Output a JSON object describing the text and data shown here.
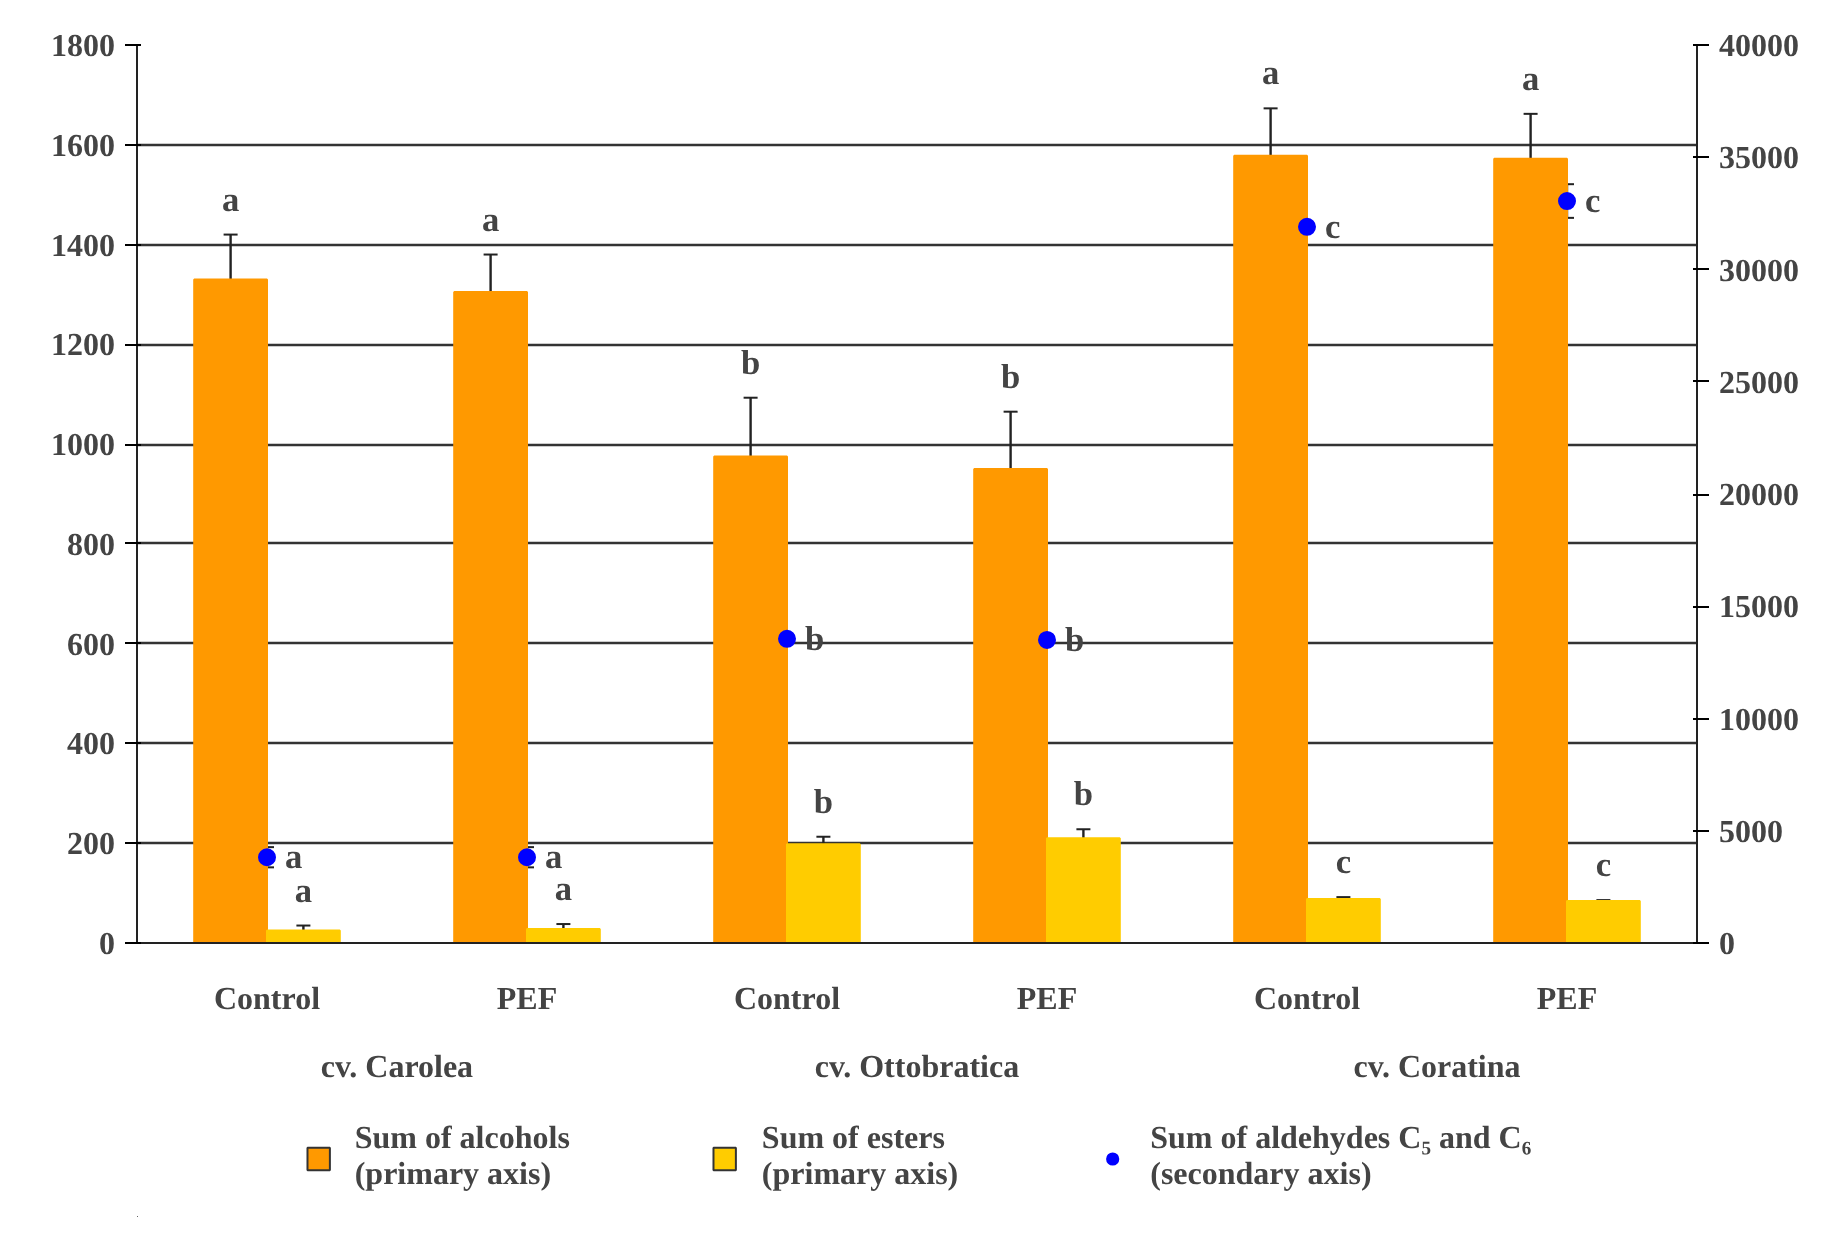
{
  "chart_data": {
    "type": "bar",
    "categories": [
      "Control",
      "PEF",
      "Control",
      "PEF",
      "Control",
      "PEF"
    ],
    "annotations": [
      "cv. Carolea",
      "cv. Ottobratica",
      "cv. Coratina"
    ],
    "series": [
      {
        "name": "Sum of alcohols\n(primary axis)",
        "color": "#ff9900",
        "values": [
          1330,
          1305,
          975,
          950,
          1578,
          1572
        ],
        "errors": [
          90,
          75,
          118,
          115,
          95,
          90
        ],
        "value_labels": [
          "a",
          "a",
          "b",
          "b",
          "a",
          "a"
        ]
      },
      {
        "name": "Sum of esters\n(primary axis)",
        "color": "#ffcc00",
        "values": [
          25,
          28,
          198,
          210,
          88,
          84
        ],
        "errors": [
          10,
          10,
          15,
          18,
          4,
          2
        ],
        "value_labels": [
          "a",
          "a",
          "b",
          "b",
          "c",
          "c"
        ]
      },
      {
        "name": "Sum of aldehydes C₅ and C₆\n(secondary axis)",
        "type": "scatter",
        "axis": "y2",
        "color": "#0000ff",
        "values": [
          3820,
          3820,
          13550,
          13500,
          31900,
          33050
        ],
        "errors": [
          450,
          450,
          null,
          null,
          null,
          750
        ],
        "value_labels": [
          "a",
          "a",
          "b",
          "b",
          "c",
          "c"
        ]
      }
    ],
    "ylim": [
      0,
      1800
    ],
    "yticks": [
      0,
      200,
      400,
      600,
      800,
      1000,
      1200,
      1400,
      1600,
      1800
    ],
    "y2lim": [
      0,
      40000
    ],
    "y2ticks": [
      0,
      5000,
      10000,
      15000,
      20000,
      25000,
      30000,
      35000,
      40000
    ],
    "grid": "y",
    "legend": "bottom",
    "marker": "circle"
  }
}
